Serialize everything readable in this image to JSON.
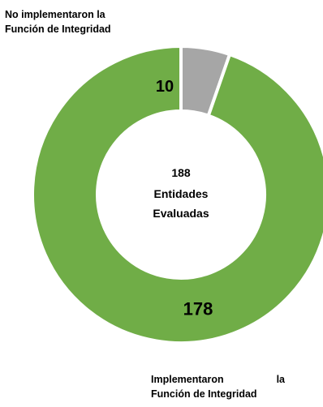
{
  "chart_data": {
    "type": "pie",
    "variant": "donut",
    "slices": [
      {
        "label": "No implementaron la Función de Integridad",
        "value": 10,
        "color": "#a6a6a6"
      },
      {
        "label": "Implementaron la Función de Integridad",
        "value": 178,
        "color": "#70ad47"
      }
    ],
    "center_text": [
      "188",
      "Entidades",
      "Evaluadas"
    ]
  },
  "labels": {
    "top_line1": "No implementaron la",
    "top_line2": "Función de Integridad",
    "bottom_word1": "Implementaron",
    "bottom_word2": "la",
    "bottom_line2": "Función de Integridad"
  }
}
